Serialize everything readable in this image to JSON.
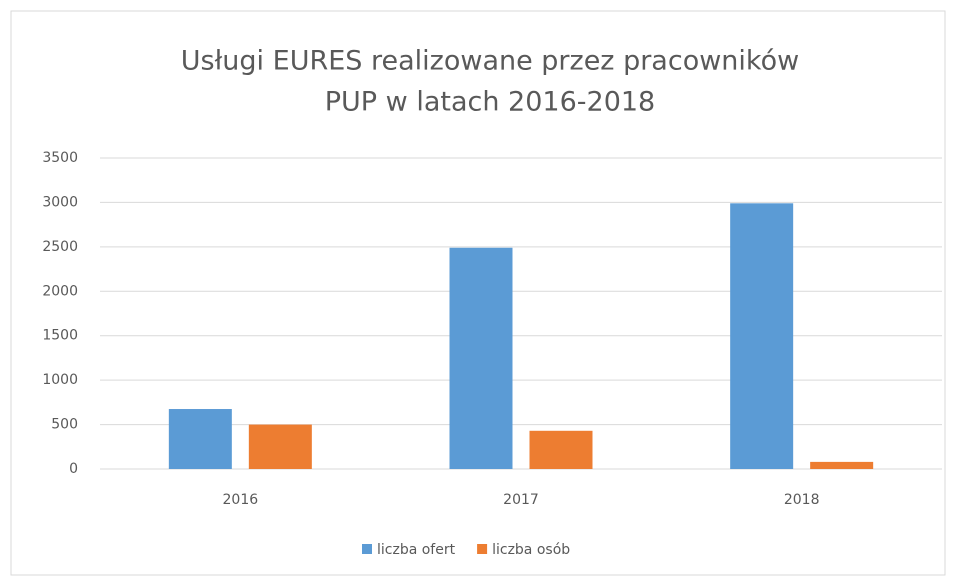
{
  "chart_data": {
    "type": "bar",
    "title": [
      "Usługi EURES realizowane przez pracowników",
      "PUP w latach 2016-2018"
    ],
    "categories": [
      "2016",
      "2017",
      "2018"
    ],
    "series": [
      {
        "name": "liczba ofert",
        "color": "#5b9bd5",
        "values": [
          675,
          2490,
          2990
        ]
      },
      {
        "name": "liczba osób",
        "color": "#ed7d31",
        "values": [
          500,
          430,
          80
        ]
      }
    ],
    "ylim": [
      0,
      3500
    ],
    "yticks": [
      0,
      500,
      1000,
      1500,
      2000,
      2500,
      3000,
      3500
    ],
    "grid": true,
    "legend": "bottom"
  }
}
